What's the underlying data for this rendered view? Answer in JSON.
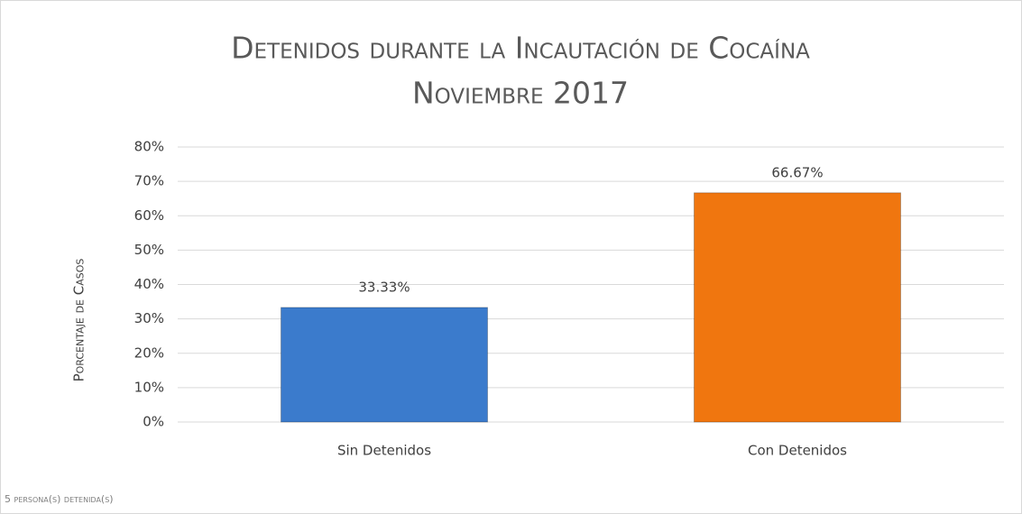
{
  "chart_data": {
    "type": "bar",
    "title": "Detenidos durante la Incautación de Cocaína",
    "subtitle": "Noviembre 2017",
    "y_label": "Porcentaje de Casos",
    "footnote": "5 persona(s) detenida(s)",
    "categories": [
      "Sin Detenidos",
      "Con Detenidos"
    ],
    "values": [
      33.33,
      66.67
    ],
    "value_labels": [
      "33.33%",
      "66.67%"
    ],
    "colors": [
      "#3b7bcc",
      "#f0760f"
    ],
    "ylim": [
      0,
      80
    ],
    "yticks": [
      {
        "value": 0,
        "label": "0%"
      },
      {
        "value": 10,
        "label": "10%"
      },
      {
        "value": 20,
        "label": "20%"
      },
      {
        "value": 30,
        "label": "30%"
      },
      {
        "value": 40,
        "label": "40%"
      },
      {
        "value": 50,
        "label": "50%"
      },
      {
        "value": 60,
        "label": "60%"
      },
      {
        "value": 70,
        "label": "70%"
      },
      {
        "value": 80,
        "label": "80%"
      }
    ],
    "grid": true
  }
}
